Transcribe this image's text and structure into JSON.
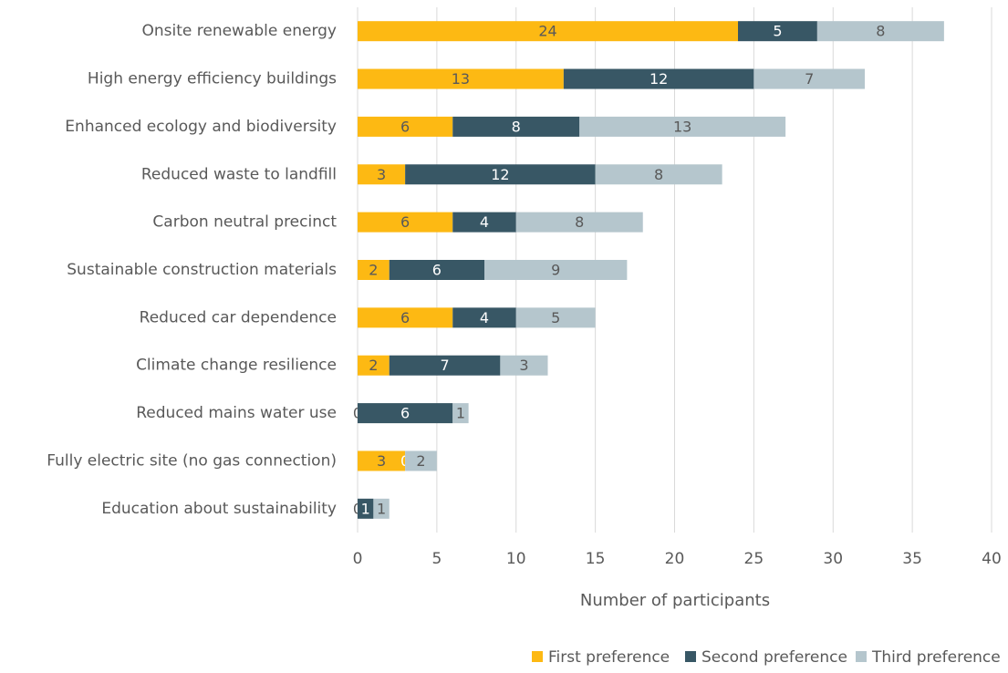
{
  "chart_data": {
    "type": "bar",
    "orientation": "horizontal",
    "stacked": true,
    "categories": [
      "Onsite renewable energy",
      "High energy efficiency buildings",
      "Enhanced ecology and biodiversity",
      "Reduced waste to landfill",
      "Carbon neutral precinct",
      "Sustainable construction materials",
      "Reduced car dependence",
      "Climate change resilience",
      "Reduced mains water use",
      "Fully electric site (no gas connection)",
      "Education about sustainability"
    ],
    "series": [
      {
        "name": "First preference",
        "color": "#FDB913",
        "label_color": "#595959",
        "values": [
          24,
          13,
          6,
          3,
          6,
          2,
          6,
          2,
          0,
          3,
          0
        ]
      },
      {
        "name": "Second preference",
        "color": "#385765",
        "label_color": "#ffffff",
        "values": [
          5,
          12,
          8,
          12,
          4,
          6,
          4,
          7,
          6,
          0,
          1
        ]
      },
      {
        "name": "Third preference",
        "color": "#B5C6CD",
        "label_color": "#595959",
        "values": [
          8,
          7,
          13,
          8,
          8,
          9,
          5,
          3,
          1,
          2,
          1
        ]
      }
    ],
    "x_label": "Number of participants",
    "xlim": [
      0,
      40
    ],
    "xticks": [
      0,
      5,
      10,
      15,
      20,
      25,
      30,
      35,
      40
    ],
    "grid": true,
    "legend": "bottom"
  }
}
